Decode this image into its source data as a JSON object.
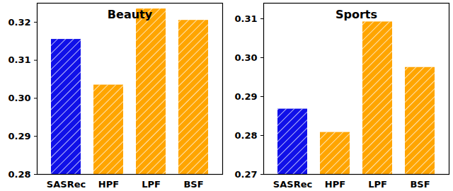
{
  "chart_data": [
    {
      "type": "bar",
      "title": "Beauty",
      "categories": [
        "SASRec",
        "HPF",
        "LPF",
        "BSF"
      ],
      "values": [
        0.3155,
        0.3035,
        0.3235,
        0.3205
      ],
      "colors": [
        "#1010e8",
        "#ffa500",
        "#ffa500",
        "#ffa500"
      ],
      "ylim": [
        0.28,
        0.325
      ],
      "yticks": [
        0.28,
        0.29,
        0.3,
        0.31,
        0.32
      ],
      "grid": false
    },
    {
      "type": "bar",
      "title": "Sports",
      "categories": [
        "SASRec",
        "HPF",
        "LPF",
        "BSF"
      ],
      "values": [
        0.2868,
        0.2808,
        0.3092,
        0.2975
      ],
      "colors": [
        "#1010e8",
        "#ffa500",
        "#ffa500",
        "#ffa500"
      ],
      "ylim": [
        0.27,
        0.314
      ],
      "yticks": [
        0.27,
        0.28,
        0.29,
        0.3,
        0.31
      ],
      "grid": false
    }
  ]
}
